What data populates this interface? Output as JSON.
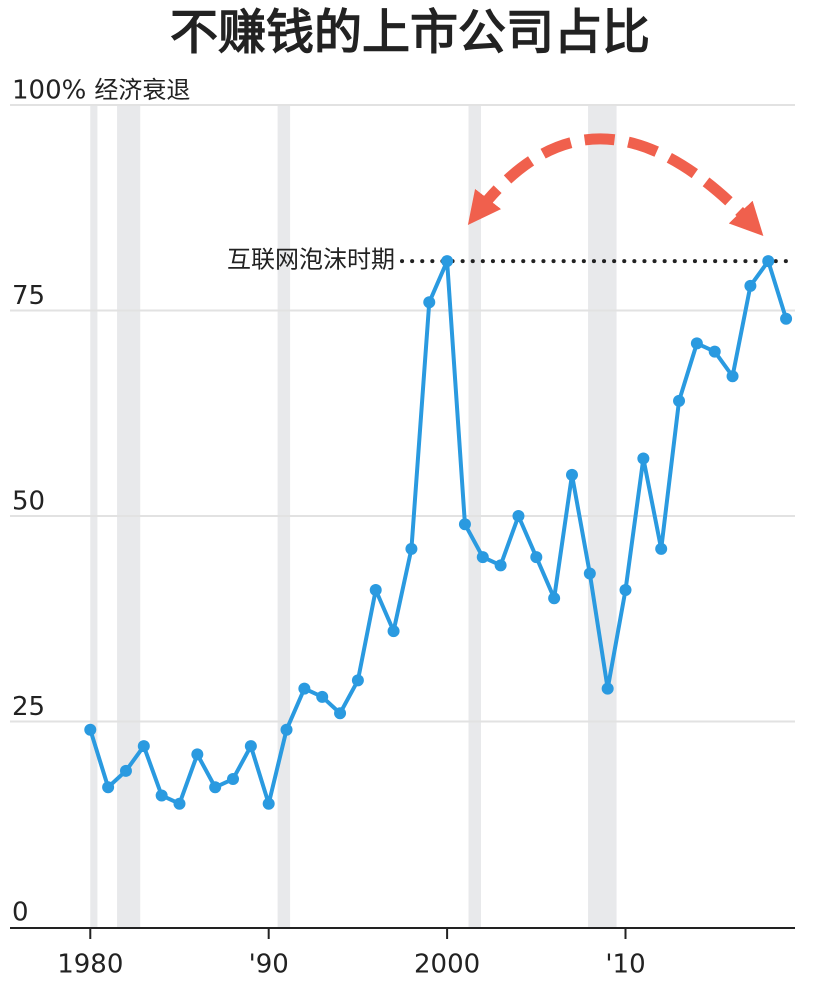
{
  "chart_data": {
    "type": "line",
    "title": "不赚钱的上市公司占比",
    "x": [
      1980,
      1981,
      1982,
      1983,
      1984,
      1985,
      1986,
      1987,
      1988,
      1989,
      1990,
      1991,
      1992,
      1993,
      1994,
      1995,
      1996,
      1997,
      1998,
      1999,
      2000,
      2001,
      2002,
      2003,
      2004,
      2005,
      2006,
      2007,
      2008,
      2009,
      2010,
      2011,
      2012,
      2013,
      2014,
      2015,
      2016,
      2017,
      2018,
      2019
    ],
    "values": [
      24,
      17,
      19,
      22,
      16,
      15,
      21,
      17,
      18,
      22,
      15,
      24,
      29,
      28,
      26,
      30,
      41,
      36,
      46,
      76,
      81,
      49,
      45,
      44,
      50,
      45,
      40,
      55,
      43,
      29,
      41,
      57,
      46,
      64,
      71,
      70,
      67,
      78,
      81,
      74
    ],
    "color": "#2a9ae0",
    "xlim": [
      1975.5,
      2019.5
    ],
    "xticks": [
      1980,
      {
        "value": 1990,
        "label": "'90"
      },
      2000,
      {
        "value": 2010,
        "label": "'10"
      }
    ],
    "ylim": [
      0,
      100
    ],
    "yticks": [
      0,
      25,
      50,
      75,
      {
        "value": 100,
        "label": "100%"
      }
    ],
    "grid": true,
    "recession_label": "经济衰退",
    "recessions": [
      [
        1980,
        1980.4
      ],
      [
        1981.5,
        1982.8
      ],
      [
        1990.5,
        1991.2
      ],
      [
        2001.2,
        2001.9
      ],
      [
        2007.9,
        2009.5
      ]
    ],
    "annotation": {
      "text": "互联网泡沫时期",
      "value": 81
    }
  }
}
